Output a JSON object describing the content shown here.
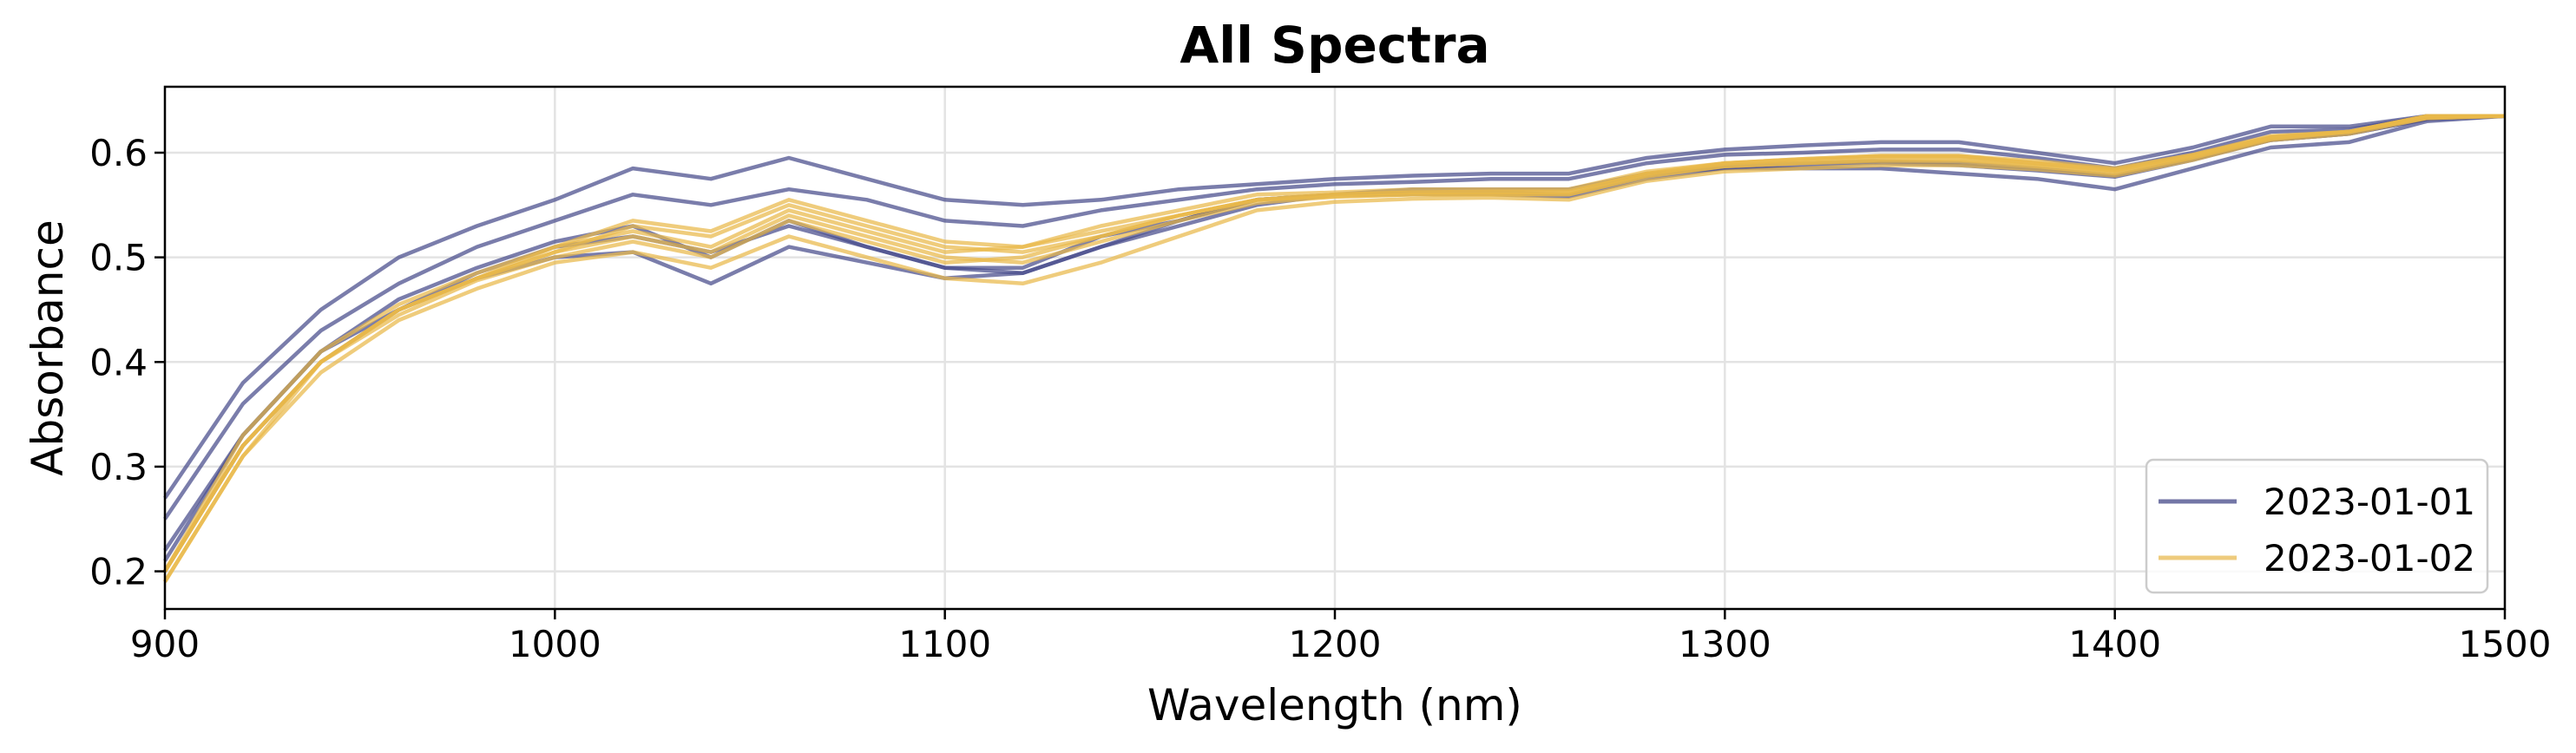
{
  "chart_data": {
    "type": "line",
    "title": "All Spectra",
    "xlabel": "Wavelength (nm)",
    "ylabel": "Absorbance",
    "xlim": [
      900,
      1500
    ],
    "ylim": [
      0.164,
      0.663
    ],
    "xticks": [
      "900",
      "1000",
      "1100",
      "1200",
      "1300",
      "1400",
      "1500"
    ],
    "yticks": [
      "0.2",
      "0.3",
      "0.4",
      "0.5",
      "0.6"
    ],
    "grid": true,
    "legend_position": "bottom-right",
    "legend": [
      {
        "label": "2023-01-01",
        "color": "#7376a6"
      },
      {
        "label": "2023-01-02",
        "color": "#eecb7d"
      }
    ],
    "x": [
      900,
      920,
      940,
      960,
      980,
      1000,
      1020,
      1040,
      1060,
      1080,
      1100,
      1120,
      1140,
      1160,
      1180,
      1200,
      1220,
      1240,
      1260,
      1280,
      1300,
      1320,
      1340,
      1360,
      1380,
      1400,
      1420,
      1440,
      1460,
      1480,
      1500
    ],
    "series": [
      {
        "group": "2023-01-01",
        "values": [
          0.27,
          0.38,
          0.45,
          0.5,
          0.53,
          0.555,
          0.585,
          0.575,
          0.595,
          0.575,
          0.555,
          0.55,
          0.555,
          0.565,
          0.57,
          0.575,
          0.578,
          0.58,
          0.58,
          0.595,
          0.603,
          0.607,
          0.61,
          0.61,
          0.6,
          0.59,
          0.605,
          0.625,
          0.625,
          0.635,
          0.635
        ]
      },
      {
        "group": "2023-01-01",
        "values": [
          0.25,
          0.36,
          0.43,
          0.475,
          0.51,
          0.535,
          0.56,
          0.55,
          0.565,
          0.555,
          0.535,
          0.53,
          0.545,
          0.555,
          0.565,
          0.57,
          0.572,
          0.575,
          0.575,
          0.59,
          0.598,
          0.6,
          0.603,
          0.603,
          0.595,
          0.585,
          0.6,
          0.62,
          0.622,
          0.635,
          0.635
        ]
      },
      {
        "group": "2023-01-01",
        "values": [
          0.22,
          0.33,
          0.41,
          0.45,
          0.48,
          0.5,
          0.505,
          0.475,
          0.51,
          0.495,
          0.48,
          0.485,
          0.51,
          0.53,
          0.55,
          0.56,
          0.565,
          0.565,
          0.565,
          0.58,
          0.585,
          0.585,
          0.585,
          0.58,
          0.575,
          0.565,
          0.585,
          0.605,
          0.61,
          0.63,
          0.635
        ]
      },
      {
        "group": "2023-01-01",
        "values": [
          0.21,
          0.33,
          0.41,
          0.46,
          0.49,
          0.515,
          0.53,
          0.5,
          0.535,
          0.51,
          0.49,
          0.49,
          0.52,
          0.535,
          0.555,
          0.56,
          0.562,
          0.562,
          0.56,
          0.578,
          0.588,
          0.59,
          0.592,
          0.59,
          0.585,
          0.578,
          0.594,
          0.612,
          0.618,
          0.632,
          0.635
        ]
      },
      {
        "group": "2023-01-01",
        "values": [
          0.2,
          0.32,
          0.4,
          0.45,
          0.485,
          0.51,
          0.52,
          0.505,
          0.53,
          0.51,
          0.49,
          0.485,
          0.51,
          0.535,
          0.555,
          0.56,
          0.56,
          0.56,
          0.558,
          0.575,
          0.585,
          0.588,
          0.59,
          0.588,
          0.583,
          0.577,
          0.593,
          0.612,
          0.618,
          0.632,
          0.635
        ]
      },
      {
        "group": "2023-01-02",
        "values": [
          0.2,
          0.32,
          0.4,
          0.45,
          0.48,
          0.505,
          0.53,
          0.52,
          0.55,
          0.53,
          0.51,
          0.505,
          0.52,
          0.54,
          0.555,
          0.56,
          0.562,
          0.563,
          0.563,
          0.58,
          0.59,
          0.593,
          0.596,
          0.596,
          0.59,
          0.583,
          0.597,
          0.615,
          0.62,
          0.635,
          0.635
        ]
      },
      {
        "group": "2023-01-02",
        "values": [
          0.19,
          0.31,
          0.4,
          0.445,
          0.478,
          0.5,
          0.515,
          0.5,
          0.535,
          0.515,
          0.495,
          0.5,
          0.52,
          0.54,
          0.555,
          0.558,
          0.56,
          0.56,
          0.56,
          0.578,
          0.587,
          0.59,
          0.592,
          0.592,
          0.587,
          0.58,
          0.595,
          0.613,
          0.62,
          0.633,
          0.635
        ]
      },
      {
        "group": "2023-01-02",
        "values": [
          0.2,
          0.32,
          0.4,
          0.45,
          0.48,
          0.51,
          0.525,
          0.51,
          0.545,
          0.525,
          0.505,
          0.51,
          0.53,
          0.545,
          0.56,
          0.562,
          0.565,
          0.565,
          0.565,
          0.582,
          0.59,
          0.594,
          0.597,
          0.597,
          0.592,
          0.585,
          0.598,
          0.615,
          0.62,
          0.635,
          0.635
        ]
      },
      {
        "group": "2023-01-02",
        "values": [
          0.19,
          0.31,
          0.39,
          0.44,
          0.47,
          0.495,
          0.505,
          0.49,
          0.52,
          0.5,
          0.48,
          0.475,
          0.495,
          0.52,
          0.545,
          0.553,
          0.556,
          0.557,
          0.555,
          0.573,
          0.582,
          0.585,
          0.588,
          0.588,
          0.584,
          0.578,
          0.593,
          0.612,
          0.618,
          0.633,
          0.635
        ]
      },
      {
        "group": "2023-01-02",
        "values": [
          0.2,
          0.32,
          0.4,
          0.45,
          0.48,
          0.505,
          0.52,
          0.505,
          0.54,
          0.52,
          0.5,
          0.495,
          0.515,
          0.535,
          0.552,
          0.558,
          0.56,
          0.56,
          0.56,
          0.577,
          0.587,
          0.59,
          0.593,
          0.593,
          0.588,
          0.582,
          0.596,
          0.614,
          0.62,
          0.634,
          0.635
        ]
      },
      {
        "group": "2023-01-02",
        "values": [
          0.2,
          0.33,
          0.41,
          0.455,
          0.485,
          0.51,
          0.535,
          0.525,
          0.555,
          0.535,
          0.515,
          0.51,
          0.525,
          0.54,
          0.555,
          0.56,
          0.562,
          0.562,
          0.562,
          0.58,
          0.59,
          0.594,
          0.597,
          0.597,
          0.59,
          0.584,
          0.598,
          0.616,
          0.62,
          0.635,
          0.635
        ]
      }
    ]
  }
}
